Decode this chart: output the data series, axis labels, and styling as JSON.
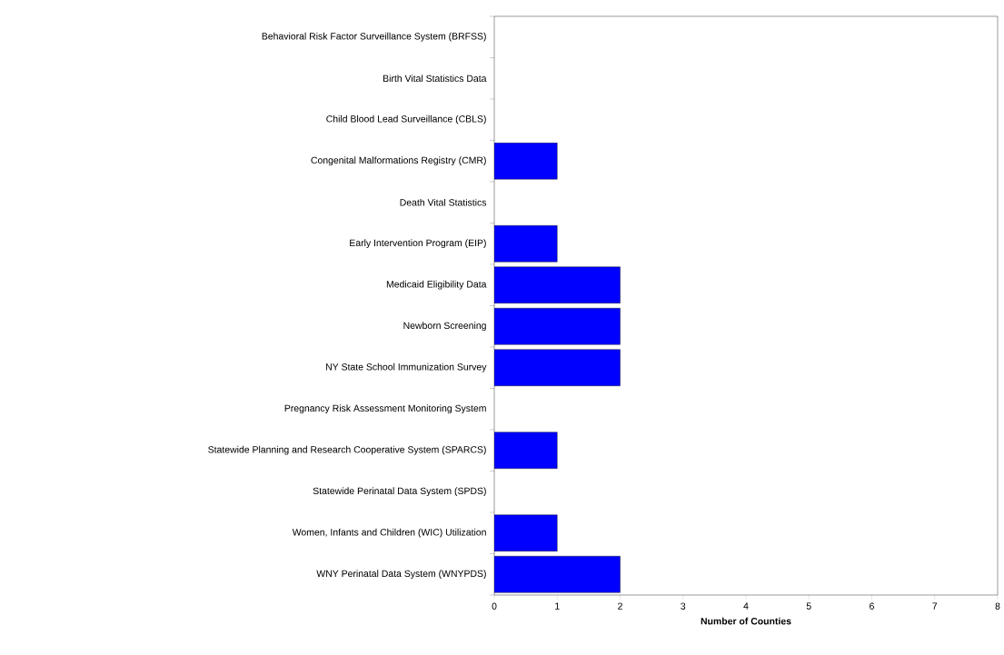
{
  "chart_data": {
    "type": "bar",
    "orientation": "horizontal",
    "xlabel": "Number of Counties",
    "categories": [
      "Behavioral Risk Factor Surveillance System (BRFSS)",
      "Birth Vital Statistics Data",
      "Child Blood Lead Surveillance (CBLS)",
      "Congenital Malformations Registry (CMR)",
      "Death Vital Statistics",
      "Early Intervention Program (EIP)",
      "Medicaid Eligibility Data",
      "Newborn Screening",
      "NY State School Immunization Survey",
      "Pregnancy Risk Assessment Monitoring System",
      "Statewide Planning and Research Cooperative System (SPARCS)",
      "Statewide Perinatal Data System (SPDS)",
      "Women, Infants and Children (WIC) Utilization",
      "WNY Perinatal Data System (WNYPDS)"
    ],
    "values": [
      0,
      0,
      0,
      1,
      0,
      1,
      2,
      2,
      2,
      0,
      1,
      0,
      1,
      2
    ],
    "color": "#0000ff",
    "xlim": [
      0,
      8
    ],
    "xticks": [
      0,
      1,
      2,
      3,
      4,
      5,
      6,
      7,
      8
    ]
  }
}
